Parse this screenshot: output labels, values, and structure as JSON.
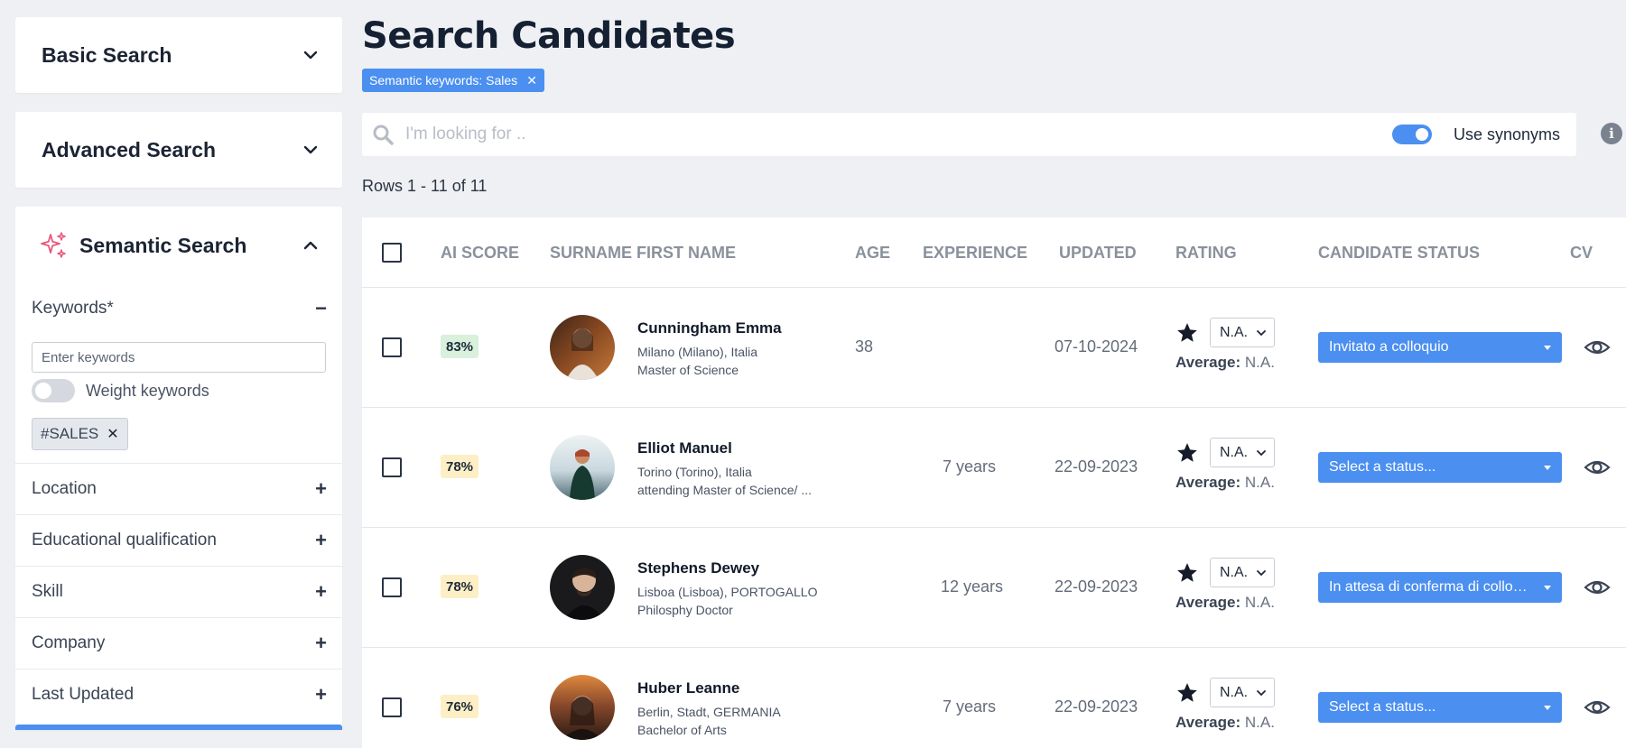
{
  "sidebar": {
    "basic_search": "Basic Search",
    "advanced_search": "Advanced Search",
    "semantic_search": "Semantic Search",
    "keywords_label": "Keywords*",
    "keywords_placeholder": "Enter keywords",
    "weight_keywords": "Weight keywords",
    "keyword_tag": "#SALES",
    "filters": [
      "Location",
      "Educational qualification",
      "Skill",
      "Company",
      "Last Updated"
    ]
  },
  "main": {
    "title": "Search Candidates",
    "chip": "Semantic keywords: Sales",
    "search_placeholder": "I'm looking for ..",
    "use_synonyms": "Use synonyms",
    "rows_info": "Rows 1 - 11 of 11"
  },
  "table": {
    "headers": {
      "ai_score": "AI SCORE",
      "name": "SURNAME FIRST NAME",
      "age": "AGE",
      "experience": "EXPERIENCE",
      "updated": "UPDATED",
      "rating": "RATING",
      "status": "CANDIDATE STATUS",
      "cv": "CV"
    },
    "rating_value": "N.A.",
    "average_label": "Average:",
    "average_value": "N.A.",
    "rows": [
      {
        "score": "83%",
        "name": "Cunningham Emma",
        "location": "Milano (Milano), Italia",
        "degree": "Master of Science",
        "age": "38",
        "experience": "",
        "updated": "07-10-2024",
        "status": "Invitato a colloquio"
      },
      {
        "score": "78%",
        "name": "Elliot Manuel",
        "location": "Torino (Torino), Italia",
        "degree": "attending Master of Science/ ...",
        "age": "",
        "experience": "7 years",
        "updated": "22-09-2023",
        "status": "Select a status..."
      },
      {
        "score": "78%",
        "name": "Stephens Dewey",
        "location": "Lisboa (Lisboa), PORTOGALLO",
        "degree": "Philosphy Doctor",
        "age": "",
        "experience": "12 years",
        "updated": "22-09-2023",
        "status": "In attesa di conferma di colloquio"
      },
      {
        "score": "76%",
        "name": "Huber Leanne",
        "location": "Berlin, Stadt, GERMANIA",
        "degree": "Bachelor of Arts",
        "age": "",
        "experience": "7 years",
        "updated": "22-09-2023",
        "status": "Select a status..."
      }
    ]
  },
  "colors": {
    "accent": "#4b8ff0",
    "score_green": "#d8f0dc",
    "score_yellow": "#fcefc6"
  }
}
